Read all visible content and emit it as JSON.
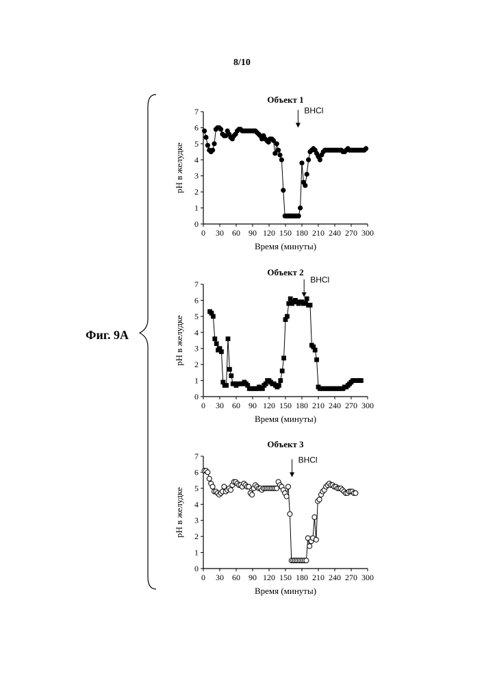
{
  "page_number": "8/10",
  "figure_label": "Фиг. 9A",
  "chart_data": [
    {
      "type": "line",
      "title": "Объект 1",
      "xlabel": "Время (минуты)",
      "ylabel": "pH в желудке",
      "xlim": [
        0,
        300
      ],
      "ylim": [
        0,
        7
      ],
      "xticks": [
        0,
        30,
        60,
        90,
        120,
        150,
        180,
        210,
        240,
        270,
        300
      ],
      "yticks": [
        0,
        1,
        2,
        3,
        4,
        5,
        6,
        7
      ],
      "marker": "filled-circle",
      "annotation": {
        "text": "BHCl",
        "x": 173,
        "arrow_tip_y": 6.0
      },
      "series": [
        {
          "x": [
            2,
            5,
            8,
            11,
            14,
            17,
            20,
            23,
            26,
            29,
            32,
            35,
            38,
            41,
            44,
            47,
            50,
            53,
            56,
            59,
            62,
            65,
            68,
            71,
            74,
            77,
            80,
            83,
            86,
            89,
            92,
            95,
            98,
            101,
            104,
            107,
            110,
            113,
            116,
            119,
            122,
            125,
            128,
            131,
            134,
            137,
            140,
            143,
            146,
            149,
            152,
            155,
            157,
            159,
            162,
            165,
            168,
            171,
            174,
            177,
            180,
            183,
            186,
            189,
            192,
            195,
            198,
            201,
            204,
            207,
            210,
            213,
            216,
            219,
            222,
            225,
            228,
            231,
            234,
            237,
            240,
            243,
            246,
            249,
            252,
            255,
            258,
            261,
            264,
            267,
            270,
            273,
            276,
            279,
            282,
            285,
            288,
            291,
            294,
            297
          ],
          "y": [
            5.8,
            5.4,
            4.9,
            4.6,
            4.5,
            4.6,
            5.0,
            5.9,
            6.0,
            6.0,
            5.9,
            5.6,
            5.5,
            5.5,
            5.8,
            5.6,
            5.4,
            5.3,
            5.5,
            5.6,
            5.8,
            5.9,
            5.9,
            5.8,
            5.8,
            5.8,
            5.8,
            5.8,
            5.8,
            5.8,
            5.8,
            5.8,
            5.7,
            5.6,
            5.5,
            5.3,
            5.5,
            5.3,
            5.2,
            5.1,
            5.3,
            5.3,
            5.2,
            4.4,
            5.0,
            4.6,
            4.3,
            4.0,
            2.1,
            0.5,
            0.5,
            0.5,
            0.5,
            0.5,
            0.5,
            0.5,
            0.5,
            0.5,
            0.5,
            1.0,
            3.8,
            2.6,
            2.4,
            3.1,
            4.0,
            4.5,
            4.6,
            4.7,
            4.6,
            4.4,
            4.2,
            4.0,
            4.3,
            4.5,
            4.6,
            4.6,
            4.6,
            4.6,
            4.6,
            4.6,
            4.6,
            4.6,
            4.6,
            4.6,
            4.6,
            4.5,
            4.5,
            4.6,
            4.7,
            4.6,
            4.6,
            4.6,
            4.6,
            4.6,
            4.6,
            4.6,
            4.6,
            4.6,
            4.6,
            4.7
          ]
        }
      ]
    },
    {
      "type": "line",
      "title": "Объект 2",
      "xlabel": "Время (минуты)",
      "ylabel": "pH в желудке",
      "xlim": [
        0,
        300
      ],
      "ylim": [
        0,
        7
      ],
      "xticks": [
        0,
        30,
        60,
        90,
        120,
        150,
        180,
        210,
        240,
        270,
        300
      ],
      "yticks": [
        0,
        1,
        2,
        3,
        4,
        5,
        6,
        7
      ],
      "marker": "filled-square",
      "annotation": {
        "text": "BHCl",
        "x": 184,
        "arrow_tip_y": 6.2
      },
      "series": [
        {
          "x": [
            12,
            15,
            18,
            21,
            24,
            27,
            30,
            33,
            36,
            39,
            42,
            45,
            48,
            51,
            54,
            57,
            60,
            63,
            66,
            69,
            72,
            75,
            78,
            81,
            84,
            87,
            90,
            93,
            96,
            99,
            102,
            105,
            108,
            111,
            114,
            117,
            120,
            123,
            126,
            129,
            132,
            135,
            138,
            141,
            144,
            147,
            150,
            153,
            156,
            159,
            162,
            165,
            168,
            171,
            174,
            177,
            180,
            183,
            186,
            189,
            192,
            195,
            198,
            201,
            204,
            207,
            210,
            213,
            216,
            219,
            222,
            225,
            228,
            231,
            234,
            237,
            240,
            243,
            246,
            249,
            252,
            255,
            258,
            261,
            264,
            267,
            270,
            273,
            276,
            279,
            282,
            285,
            288
          ],
          "y": [
            5.3,
            5.2,
            5.0,
            3.6,
            3.3,
            2.9,
            3.0,
            2.8,
            0.9,
            0.7,
            0.7,
            3.6,
            1.7,
            1.3,
            0.8,
            0.8,
            0.7,
            0.8,
            0.8,
            0.8,
            0.8,
            0.9,
            0.8,
            0.7,
            0.5,
            0.5,
            0.5,
            0.5,
            0.5,
            0.5,
            0.6,
            0.5,
            0.5,
            0.7,
            0.8,
            1.0,
            1.0,
            0.9,
            0.8,
            0.8,
            0.7,
            0.6,
            0.7,
            1.0,
            1.6,
            2.4,
            4.8,
            5.0,
            5.8,
            6.1,
            5.8,
            5.9,
            6.0,
            5.9,
            5.8,
            5.9,
            5.9,
            5.8,
            5.8,
            6.1,
            5.7,
            5.7,
            3.2,
            3.1,
            2.9,
            2.3,
            0.6,
            0.5,
            0.5,
            0.5,
            0.5,
            0.5,
            0.5,
            0.5,
            0.5,
            0.5,
            0.5,
            0.5,
            0.5,
            0.5,
            0.5,
            0.5,
            0.6,
            0.6,
            0.7,
            0.8,
            0.9,
            1.0,
            1.0,
            1.0,
            1.0,
            1.0,
            1.0
          ]
        }
      ]
    },
    {
      "type": "line",
      "title": "Объект 3",
      "xlabel": "Время (минуты)",
      "ylabel": "pH в желудке",
      "xlim": [
        0,
        300
      ],
      "ylim": [
        0,
        7
      ],
      "xticks": [
        0,
        30,
        60,
        90,
        120,
        150,
        180,
        210,
        240,
        270,
        300
      ],
      "yticks": [
        0,
        1,
        2,
        3,
        4,
        5,
        6,
        7
      ],
      "marker": "open-circle",
      "annotation": {
        "text": "BHCl",
        "x": 162,
        "arrow_tip_y": 5.7
      },
      "series": [
        {
          "x": [
            2,
            5,
            8,
            11,
            14,
            17,
            20,
            23,
            26,
            29,
            32,
            35,
            38,
            41,
            44,
            47,
            50,
            53,
            56,
            59,
            62,
            65,
            68,
            71,
            74,
            77,
            80,
            83,
            86,
            89,
            92,
            95,
            98,
            101,
            104,
            107,
            110,
            113,
            116,
            119,
            122,
            125,
            128,
            131,
            134,
            137,
            140,
            143,
            146,
            149,
            152,
            155,
            158,
            161,
            164,
            167,
            170,
            173,
            176,
            179,
            182,
            185,
            188,
            191,
            194,
            197,
            200,
            203,
            206,
            209,
            212,
            215,
            218,
            221,
            224,
            227,
            230,
            233,
            236,
            239,
            242,
            245,
            248,
            251,
            254,
            257,
            260,
            263,
            266,
            269,
            272,
            275,
            278
          ],
          "y": [
            6.1,
            6.1,
            6.0,
            5.6,
            5.3,
            5.1,
            4.8,
            4.8,
            4.7,
            4.6,
            4.7,
            4.8,
            5.1,
            4.8,
            4.9,
            5.0,
            4.9,
            5.2,
            5.4,
            5.4,
            5.3,
            5.2,
            5.2,
            5.1,
            5.3,
            5.2,
            5.1,
            5.1,
            4.7,
            4.6,
            5.0,
            5.2,
            5.1,
            5.0,
            5.0,
            4.9,
            5.0,
            5.0,
            5.0,
            5.0,
            5.0,
            5.0,
            5.0,
            5.0,
            5.0,
            5.4,
            5.2,
            5.1,
            4.9,
            4.7,
            4.5,
            5.1,
            3.4,
            0.5,
            0.5,
            0.5,
            0.5,
            0.5,
            0.5,
            0.5,
            0.5,
            0.5,
            0.5,
            1.9,
            1.4,
            1.7,
            1.9,
            3.2,
            1.8,
            4.2,
            4.3,
            4.6,
            4.8,
            4.9,
            5.1,
            5.2,
            5.3,
            5.2,
            5.2,
            5.1,
            5.1,
            5.0,
            5.0,
            5.0,
            4.9,
            4.8,
            4.7,
            4.7,
            4.8,
            4.8,
            4.8,
            4.7,
            4.7
          ]
        }
      ]
    }
  ]
}
